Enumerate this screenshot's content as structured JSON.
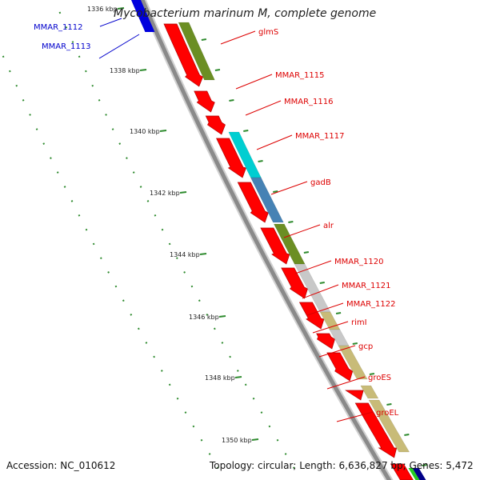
{
  "title": "Mycobacterium marinum M, complete genome",
  "accession": "Accession: NC_010612",
  "stats": "Topology: circular; Length: 6,636,827 bp; Genes: 5,472",
  "ticks": [
    "1336 kbp",
    "1338 kbp",
    "1340 kbp",
    "1342 kbp",
    "1344 kbp",
    "1346 kbp",
    "1348 kbp",
    "1350 kbp"
  ],
  "gene_labels_blue": [
    "MMAR_1112",
    "MMAR_1113"
  ],
  "gene_labels_red": [
    "glmS",
    "MMAR_1115",
    "MMAR_1116",
    "MMAR_1117",
    "gadB",
    "alr",
    "MMAR_1120",
    "MMAR_1121",
    "MMAR_1122",
    "rimI",
    "gcp",
    "groES",
    "groEL"
  ],
  "colors": {
    "cds": "#ff0000",
    "backbone": "#8a8a8a",
    "label_red": "#dd0000",
    "label_blue": "#0000cc",
    "tick": "#2e8b2e",
    "cog_olive": "#6b8e23",
    "cog_cyan": "#00ced1",
    "cog_steelblue": "#4682b4",
    "cog_grey": "#c8c8c8",
    "cog_khaki": "#c8bb78",
    "strand_blue": "#0000dd"
  }
}
